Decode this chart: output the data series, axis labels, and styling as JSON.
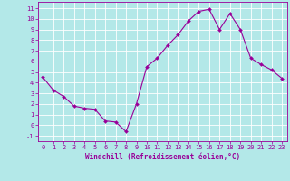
{
  "x": [
    0,
    1,
    2,
    3,
    4,
    5,
    6,
    7,
    8,
    9,
    10,
    11,
    12,
    13,
    14,
    15,
    16,
    17,
    18,
    19,
    20,
    21,
    22,
    23
  ],
  "y": [
    4.5,
    3.3,
    2.7,
    1.8,
    1.6,
    1.5,
    0.4,
    0.3,
    -0.6,
    2.0,
    5.5,
    6.3,
    7.5,
    8.5,
    9.8,
    10.7,
    10.9,
    9.0,
    10.5,
    9.0,
    6.3,
    5.7,
    5.2,
    4.4
  ],
  "line_color": "#990099",
  "marker": "D",
  "marker_size": 2.0,
  "bg_color": "#b3e8e8",
  "grid_color": "#ffffff",
  "xlabel": "Windchill (Refroidissement éolien,°C)",
  "xlabel_color": "#990099",
  "ylabel_ticks": [
    -1,
    0,
    1,
    2,
    3,
    4,
    5,
    6,
    7,
    8,
    9,
    10,
    11
  ],
  "xticks": [
    0,
    1,
    2,
    3,
    4,
    5,
    6,
    7,
    8,
    9,
    10,
    11,
    12,
    13,
    14,
    15,
    16,
    17,
    18,
    19,
    20,
    21,
    22,
    23
  ],
  "ylim": [
    -1.5,
    11.6
  ],
  "xlim": [
    -0.5,
    23.5
  ],
  "tick_color": "#990099",
  "font": "monospace",
  "tick_fontsize": 5.0,
  "xlabel_fontsize": 5.5,
  "linewidth": 0.8
}
